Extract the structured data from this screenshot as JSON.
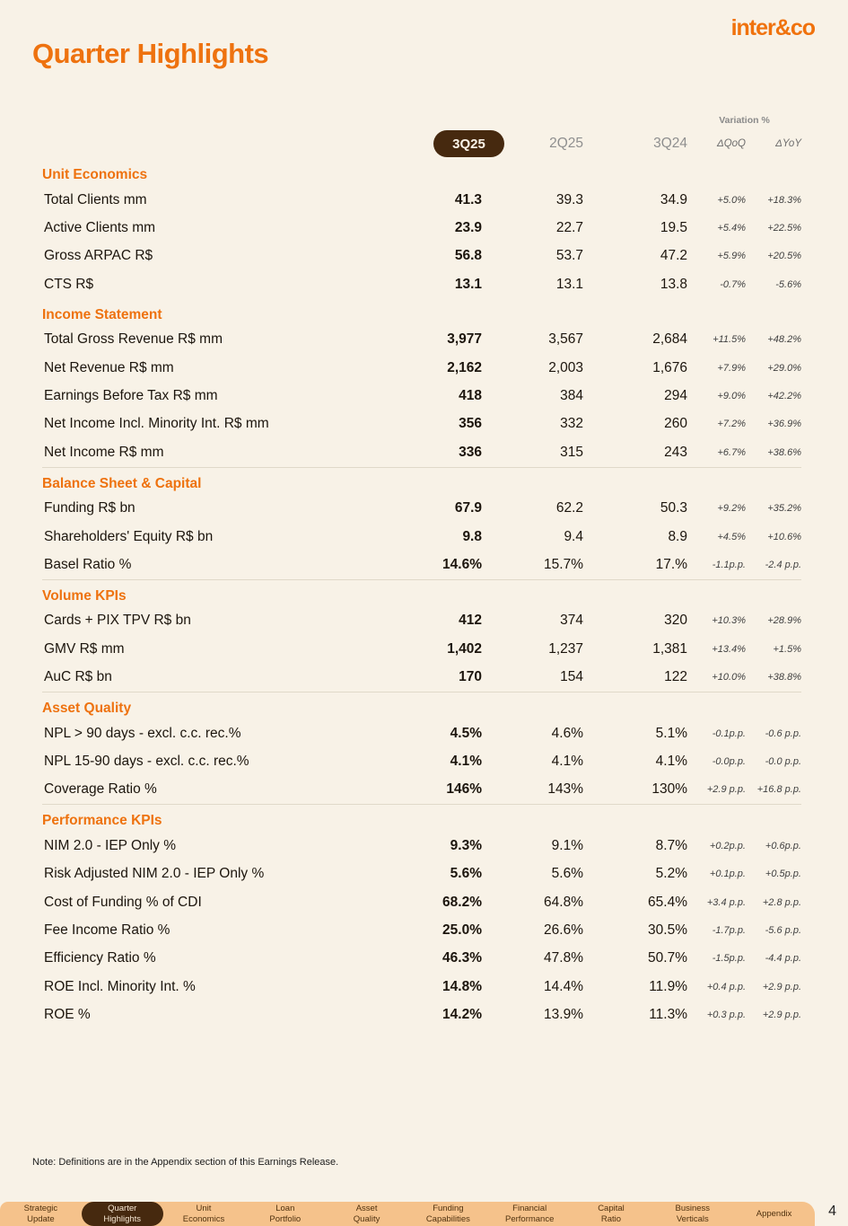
{
  "brand": {
    "logo_text": "inter&co",
    "orange": "#EE720F",
    "dark_brown": "#46290F"
  },
  "title": "Quarter Highlights",
  "note": "Note: Definitions are in the Appendix section of this Earnings Release.",
  "page_number": "4",
  "table": {
    "variation_label": "Variation %",
    "columns": [
      "3Q25",
      "2Q25",
      "3Q24",
      "ΔQoQ",
      "ΔYoY"
    ],
    "sections": [
      {
        "name": "Unit Economics",
        "divider_before": false,
        "rows": [
          {
            "label": "Total Clients mm",
            "q1": "41.3",
            "q2": "39.3",
            "q3": "34.9",
            "qoq": "+5.0%",
            "yoy": "+18.3%"
          },
          {
            "label": "Active Clients mm",
            "q1": "23.9",
            "q2": "22.7",
            "q3": "19.5",
            "qoq": "+5.4%",
            "yoy": "+22.5%"
          },
          {
            "label": "Gross ARPAC R$",
            "q1": "56.8",
            "q2": "53.7",
            "q3": "47.2",
            "qoq": "+5.9%",
            "yoy": "+20.5%"
          },
          {
            "label": "CTS R$",
            "q1": "13.1",
            "q2": "13.1",
            "q3": "13.8",
            "qoq": "-0.7%",
            "yoy": "-5.6%"
          }
        ]
      },
      {
        "name": "Income Statement",
        "divider_before": false,
        "rows": [
          {
            "label": "Total Gross Revenue R$ mm",
            "q1": "3,977",
            "q2": "3,567",
            "q3": "2,684",
            "qoq": "+11.5%",
            "yoy": "+48.2%"
          },
          {
            "label": "Net Revenue R$ mm",
            "q1": "2,162",
            "q2": "2,003",
            "q3": "1,676",
            "qoq": "+7.9%",
            "yoy": "+29.0%"
          },
          {
            "label": "Earnings Before Tax R$ mm",
            "q1": "418",
            "q2": "384",
            "q3": "294",
            "qoq": "+9.0%",
            "yoy": "+42.2%"
          },
          {
            "label": "Net Income Incl. Minority Int. R$ mm",
            "q1": "356",
            "q2": "332",
            "q3": "260",
            "qoq": "+7.2%",
            "yoy": "+36.9%"
          },
          {
            "label": "Net Income R$ mm",
            "q1": "336",
            "q2": "315",
            "q3": "243",
            "qoq": "+6.7%",
            "yoy": "+38.6%"
          }
        ]
      },
      {
        "name": "Balance Sheet & Capital",
        "divider_before": true,
        "rows": [
          {
            "label": "Funding R$ bn",
            "q1": "67.9",
            "q2": "62.2",
            "q3": "50.3",
            "qoq": "+9.2%",
            "yoy": "+35.2%"
          },
          {
            "label": "Shareholders' Equity R$ bn",
            "q1": "9.8",
            "q2": "9.4",
            "q3": "8.9",
            "qoq": "+4.5%",
            "yoy": "+10.6%"
          },
          {
            "label": "Basel Ratio %",
            "q1": "14.6%",
            "q2": "15.7%",
            "q3": "17.%",
            "qoq": "-1.1p.p.",
            "yoy": "-2.4 p.p."
          }
        ]
      },
      {
        "name": "Volume KPIs",
        "divider_before": true,
        "rows": [
          {
            "label": "Cards + PIX TPV R$ bn",
            "q1": "412",
            "q2": "374",
            "q3": "320",
            "qoq": "+10.3%",
            "yoy": "+28.9%"
          },
          {
            "label": "GMV R$ mm",
            "q1": "1,402",
            "q2": "1,237",
            "q3": "1,381",
            "qoq": "+13.4%",
            "yoy": "+1.5%"
          },
          {
            "label": "AuC R$ bn",
            "q1": "170",
            "q2": "154",
            "q3": "122",
            "qoq": "+10.0%",
            "yoy": "+38.8%"
          }
        ]
      },
      {
        "name": "Asset Quality",
        "divider_before": true,
        "rows": [
          {
            "label": "NPL > 90 days - excl. c.c. rec.%",
            "q1": "4.5%",
            "q2": "4.6%",
            "q3": "5.1%",
            "qoq": "-0.1p.p.",
            "yoy": "-0.6 p.p."
          },
          {
            "label": "NPL 15-90 days - excl. c.c. rec.%",
            "q1": "4.1%",
            "q2": "4.1%",
            "q3": "4.1%",
            "qoq": "-0.0p.p.",
            "yoy": "-0.0 p.p."
          },
          {
            "label": "Coverage Ratio %",
            "q1": "146%",
            "q2": "143%",
            "q3": "130%",
            "qoq": "+2.9 p.p.",
            "yoy": "+16.8 p.p."
          }
        ]
      },
      {
        "name": "Performance KPIs",
        "divider_before": true,
        "rows": [
          {
            "label": "NIM 2.0 - IEP Only %",
            "q1": "9.3%",
            "q2": "9.1%",
            "q3": "8.7%",
            "qoq": "+0.2p.p.",
            "yoy": "+0.6p.p."
          },
          {
            "label": "Risk Adjusted NIM 2.0 - IEP Only %",
            "q1": "5.6%",
            "q2": "5.6%",
            "q3": "5.2%",
            "qoq": "+0.1p.p.",
            "yoy": "+0.5p.p."
          },
          {
            "label": "Cost of Funding % of CDI",
            "q1": "68.2%",
            "q2": "64.8%",
            "q3": "65.4%",
            "qoq": "+3.4 p.p.",
            "yoy": "+2.8 p.p."
          },
          {
            "label": "Fee Income Ratio %",
            "q1": "25.0%",
            "q2": "26.6%",
            "q3": "30.5%",
            "qoq": "-1.7p.p.",
            "yoy": "-5.6 p.p."
          },
          {
            "label": "Efficiency Ratio %",
            "q1": "46.3%",
            "q2": "47.8%",
            "q3": "50.7%",
            "qoq": "-1.5p.p.",
            "yoy": "-4.4 p.p."
          },
          {
            "label": "ROE Incl. Minority Int. %",
            "q1": "14.8%",
            "q2": "14.4%",
            "q3": "11.9%",
            "qoq": "+0.4 p.p.",
            "yoy": "+2.9 p.p."
          },
          {
            "label": "ROE %",
            "q1": "14.2%",
            "q2": "13.9%",
            "q3": "11.3%",
            "qoq": "+0.3 p.p.",
            "yoy": "+2.9 p.p."
          }
        ]
      }
    ]
  },
  "nav": {
    "items": [
      {
        "lines": [
          "Strategic",
          "Update"
        ],
        "active": false
      },
      {
        "lines": [
          "Quarter",
          "Highlights"
        ],
        "active": true
      },
      {
        "lines": [
          "Unit",
          "Economics"
        ],
        "active": false
      },
      {
        "lines": [
          "Loan",
          "Portfolio"
        ],
        "active": false
      },
      {
        "lines": [
          "Asset",
          "Quality"
        ],
        "active": false
      },
      {
        "lines": [
          "Funding",
          "Capabilities"
        ],
        "active": false
      },
      {
        "lines": [
          "Financial",
          "Performance"
        ],
        "active": false
      },
      {
        "lines": [
          "Capital",
          "Ratio"
        ],
        "active": false
      },
      {
        "lines": [
          "Business",
          "Verticals"
        ],
        "active": false
      },
      {
        "lines": [
          "Appendix"
        ],
        "active": false
      }
    ]
  }
}
